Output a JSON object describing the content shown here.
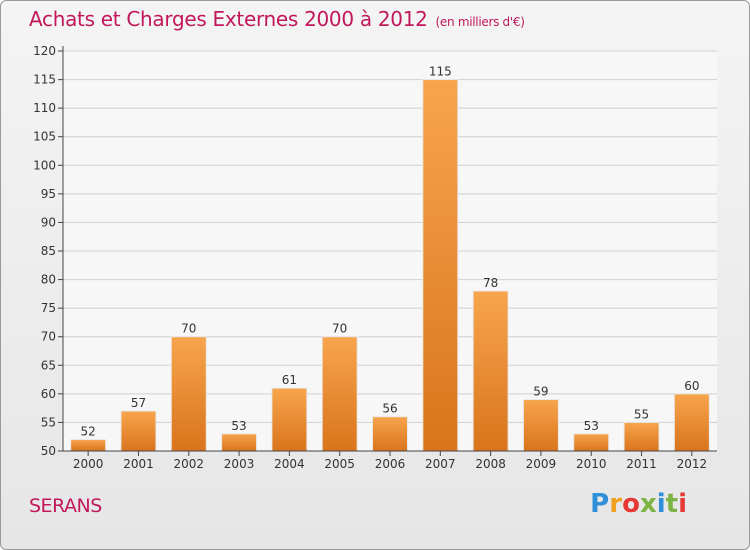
{
  "header": {
    "title": "Achats et Charges Externes 2000 à 2012",
    "unit": "(en milliers d'€)"
  },
  "place_name": "SERANS",
  "brand": {
    "logo_text": "Proxiti",
    "icon": "proxiti-logo"
  },
  "colors": {
    "title": "#c2185b",
    "bar_light": "#f7a54d",
    "bar_dark": "#d9741c",
    "axis": "#444444",
    "grid": "#d0d0d0"
  },
  "chart_data": {
    "type": "bar",
    "title": "Achats et Charges Externes 2000 à 2012",
    "subtitle": "(en milliers d'€)",
    "categories": [
      "2000",
      "2001",
      "2002",
      "2003",
      "2004",
      "2005",
      "2006",
      "2007",
      "2008",
      "2009",
      "2010",
      "2011",
      "2012"
    ],
    "values": [
      52,
      57,
      70,
      53,
      61,
      70,
      56,
      115,
      78,
      59,
      53,
      55,
      60
    ],
    "data_labels": [
      "52",
      "57",
      "70",
      "53",
      "61",
      "70",
      "56",
      "115",
      "78",
      "59",
      "53",
      "55",
      "60"
    ],
    "yticks": [
      50,
      55,
      60,
      65,
      70,
      75,
      80,
      85,
      90,
      95,
      100,
      105,
      110,
      115,
      120
    ],
    "ylim": [
      50,
      120
    ],
    "xlabel": "",
    "ylabel": "",
    "grid": true,
    "legend": "none"
  }
}
